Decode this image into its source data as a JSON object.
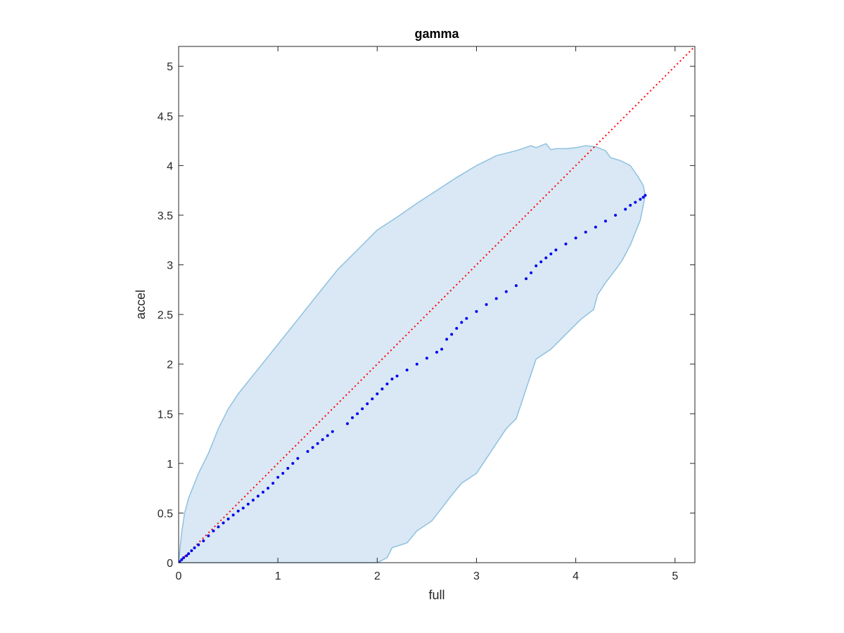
{
  "chart_data": {
    "type": "scatter",
    "title": "gamma",
    "xlabel": "full",
    "ylabel": "accel",
    "xlim": [
      0,
      5.2
    ],
    "ylim": [
      0,
      5.2
    ],
    "xticks": [
      0,
      1,
      2,
      3,
      4,
      5
    ],
    "xtick_labels": [
      "0",
      "1",
      "2",
      "3",
      "4",
      "5"
    ],
    "yticks": [
      0,
      0.5,
      1,
      1.5,
      2,
      2.5,
      3,
      3.5,
      4,
      4.5,
      5
    ],
    "ytick_labels": [
      "0",
      "0.5",
      "1",
      "1.5",
      "2",
      "2.5",
      "3",
      "3.5",
      "4",
      "4.5",
      "5"
    ],
    "grid": false,
    "colors": {
      "points": "#0000ee",
      "band_fill": "#d9e8f4",
      "band_edge": "#8fc1e0",
      "reference_line": "#ff0000",
      "axes": "#262626"
    },
    "reference_line": {
      "x": [
        0,
        5.2
      ],
      "y": [
        0,
        5.2
      ],
      "style": "dotted"
    },
    "band": {
      "upper": [
        [
          0,
          0
        ],
        [
          0.03,
          0.3
        ],
        [
          0.06,
          0.5
        ],
        [
          0.1,
          0.65
        ],
        [
          0.2,
          0.9
        ],
        [
          0.3,
          1.1
        ],
        [
          0.4,
          1.35
        ],
        [
          0.5,
          1.55
        ],
        [
          0.6,
          1.7
        ],
        [
          0.8,
          1.95
        ],
        [
          1.0,
          2.2
        ],
        [
          1.2,
          2.45
        ],
        [
          1.4,
          2.7
        ],
        [
          1.6,
          2.95
        ],
        [
          1.8,
          3.15
        ],
        [
          2.0,
          3.35
        ],
        [
          2.2,
          3.48
        ],
        [
          2.4,
          3.62
        ],
        [
          2.6,
          3.75
        ],
        [
          2.8,
          3.88
        ],
        [
          3.0,
          4.0
        ],
        [
          3.2,
          4.1
        ],
        [
          3.4,
          4.15
        ],
        [
          3.55,
          4.2
        ],
        [
          3.6,
          4.18
        ],
        [
          3.65,
          4.2
        ],
        [
          3.7,
          4.22
        ],
        [
          3.75,
          4.16
        ],
        [
          3.8,
          4.17
        ],
        [
          3.9,
          4.17
        ],
        [
          4.0,
          4.18
        ],
        [
          4.1,
          4.2
        ],
        [
          4.2,
          4.19
        ],
        [
          4.3,
          4.15
        ],
        [
          4.35,
          4.08
        ],
        [
          4.45,
          4.05
        ],
        [
          4.55,
          4.0
        ],
        [
          4.62,
          3.9
        ],
        [
          4.68,
          3.8
        ],
        [
          4.7,
          3.7
        ]
      ],
      "lower": [
        [
          4.7,
          3.7
        ],
        [
          4.65,
          3.45
        ],
        [
          4.55,
          3.2
        ],
        [
          4.47,
          3.05
        ],
        [
          4.4,
          2.95
        ],
        [
          4.3,
          2.82
        ],
        [
          4.22,
          2.7
        ],
        [
          4.18,
          2.55
        ],
        [
          4.05,
          2.45
        ],
        [
          3.9,
          2.3
        ],
        [
          3.75,
          2.15
        ],
        [
          3.6,
          2.05
        ],
        [
          3.55,
          1.9
        ],
        [
          3.5,
          1.75
        ],
        [
          3.45,
          1.6
        ],
        [
          3.4,
          1.45
        ],
        [
          3.3,
          1.35
        ],
        [
          3.2,
          1.2
        ],
        [
          3.1,
          1.05
        ],
        [
          3.0,
          0.9
        ],
        [
          2.85,
          0.8
        ],
        [
          2.75,
          0.68
        ],
        [
          2.65,
          0.55
        ],
        [
          2.55,
          0.42
        ],
        [
          2.4,
          0.32
        ],
        [
          2.3,
          0.2
        ],
        [
          2.15,
          0.15
        ],
        [
          2.1,
          0.05
        ],
        [
          2.0,
          0
        ]
      ]
    },
    "series": [
      {
        "x": [
          0.01,
          0.03,
          0.05,
          0.08,
          0.1,
          0.13,
          0.16,
          0.2,
          0.25,
          0.3,
          0.35,
          0.4,
          0.45,
          0.5,
          0.55,
          0.6,
          0.65,
          0.7,
          0.75,
          0.8,
          0.85,
          0.9,
          0.95,
          1.0,
          1.05,
          1.1,
          1.15,
          1.2,
          1.3,
          1.35,
          1.4,
          1.45,
          1.5,
          1.55,
          1.7,
          1.75,
          1.8,
          1.85,
          1.9,
          1.95,
          2.0,
          2.05,
          2.1,
          2.15,
          2.2,
          2.3,
          2.4,
          2.5,
          2.6,
          2.65,
          2.7,
          2.75,
          2.8,
          2.85,
          2.9,
          3.0,
          3.1,
          3.2,
          3.3,
          3.4,
          3.5,
          3.55,
          3.6,
          3.65,
          3.7,
          3.75,
          3.8,
          3.9,
          4.0,
          4.1,
          4.2,
          4.3,
          4.4,
          4.5,
          4.55,
          4.6,
          4.65,
          4.68,
          4.7
        ],
        "y": [
          0.01,
          0.03,
          0.05,
          0.07,
          0.09,
          0.12,
          0.15,
          0.18,
          0.22,
          0.27,
          0.32,
          0.36,
          0.4,
          0.44,
          0.48,
          0.52,
          0.55,
          0.59,
          0.63,
          0.67,
          0.71,
          0.75,
          0.8,
          0.86,
          0.9,
          0.95,
          1.0,
          1.05,
          1.12,
          1.16,
          1.2,
          1.24,
          1.28,
          1.32,
          1.4,
          1.46,
          1.5,
          1.55,
          1.6,
          1.65,
          1.7,
          1.75,
          1.8,
          1.85,
          1.88,
          1.94,
          2.0,
          2.06,
          2.12,
          2.15,
          2.25,
          2.3,
          2.36,
          2.42,
          2.46,
          2.53,
          2.6,
          2.66,
          2.73,
          2.79,
          2.86,
          2.92,
          2.99,
          3.03,
          3.07,
          3.11,
          3.15,
          3.21,
          3.27,
          3.33,
          3.38,
          3.44,
          3.5,
          3.56,
          3.6,
          3.63,
          3.66,
          3.68,
          3.7
        ]
      }
    ]
  }
}
